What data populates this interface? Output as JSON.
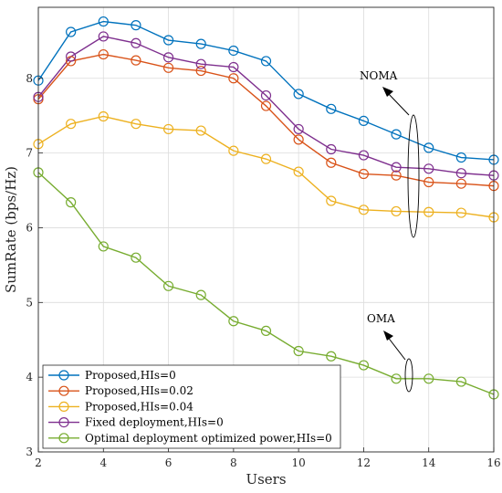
{
  "chart_data": {
    "type": "line",
    "title": "",
    "xlabel": "Users",
    "ylabel": "SumRate (bps/Hz)",
    "xlim": [
      2,
      16
    ],
    "ylim": [
      3,
      8.95
    ],
    "xticks": [
      2,
      4,
      6,
      8,
      10,
      12,
      14,
      16
    ],
    "yticks": [
      3,
      4,
      5,
      6,
      7,
      8
    ],
    "grid": true,
    "legend_position": "bottom-left",
    "x": [
      2,
      3,
      4,
      5,
      6,
      7,
      8,
      9,
      10,
      11,
      12,
      13,
      14,
      15,
      16
    ],
    "series": [
      {
        "name": "Proposed,HIs=0",
        "color": "#0072BD",
        "values": [
          7.97,
          8.62,
          8.76,
          8.71,
          8.51,
          8.46,
          8.37,
          8.23,
          7.79,
          7.59,
          7.43,
          7.25,
          7.07,
          6.94,
          6.91
        ]
      },
      {
        "name": "Proposed,HIs=0.02",
        "color": "#D95319",
        "values": [
          7.72,
          8.23,
          8.32,
          8.24,
          8.14,
          8.1,
          8.0,
          7.63,
          7.18,
          6.87,
          6.72,
          6.7,
          6.61,
          6.59,
          6.56
        ]
      },
      {
        "name": "Proposed,HIs=0.04",
        "color": "#EDB120",
        "values": [
          7.12,
          7.39,
          7.49,
          7.39,
          7.32,
          7.3,
          7.03,
          6.92,
          6.75,
          6.36,
          6.24,
          6.22,
          6.21,
          6.2,
          6.14
        ]
      },
      {
        "name": "Fixed deployment,HIs=0",
        "color": "#7E2F8E",
        "values": [
          7.75,
          8.29,
          8.56,
          8.47,
          8.28,
          8.19,
          8.15,
          7.77,
          7.32,
          7.05,
          6.97,
          6.81,
          6.79,
          6.73,
          6.7
        ]
      },
      {
        "name": "Optimal deployment optimized power,HIs=0",
        "color": "#77AC30",
        "values": [
          6.74,
          6.34,
          5.75,
          5.6,
          5.22,
          5.1,
          4.75,
          4.62,
          4.35,
          4.28,
          4.16,
          3.98,
          3.98,
          3.94,
          3.77
        ]
      }
    ],
    "annotations": [
      {
        "text": "NOMA"
      },
      {
        "text": "OMA"
      }
    ]
  }
}
